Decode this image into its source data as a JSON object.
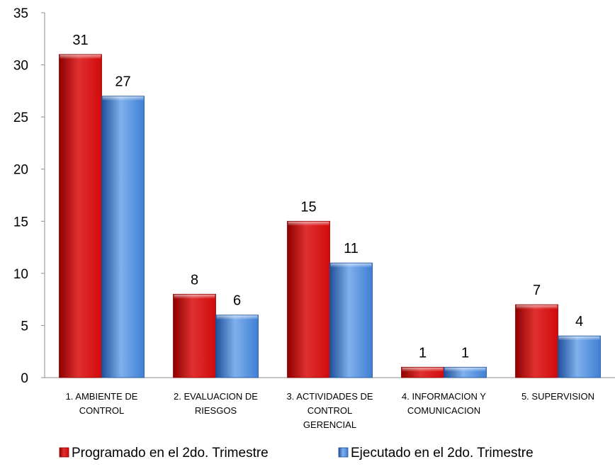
{
  "chart_data": {
    "type": "bar",
    "categories": [
      [
        "1. AMBIENTE DE",
        "CONTROL"
      ],
      [
        "2. EVALUACION DE",
        "RIESGOS"
      ],
      [
        "3. ACTIVIDADES DE",
        "CONTROL",
        "GERENCIAL"
      ],
      [
        "4. INFORMACION Y",
        "COMUNICACION"
      ],
      [
        "5. SUPERVISION"
      ]
    ],
    "series": [
      {
        "name": "Programado en el 2do. Trimestre",
        "values": [
          31,
          8,
          15,
          1,
          7
        ],
        "color": "#d10a0a",
        "color_light": "#e03030",
        "color_dark": "#8e0000"
      },
      {
        "name": "Ejecutado en el 2do. Trimestre",
        "values": [
          27,
          6,
          11,
          1,
          4
        ],
        "color": "#3f7fd4",
        "color_light": "#7fb0ec",
        "color_dark": "#1f4f9a"
      }
    ],
    "ylim": [
      0,
      35
    ],
    "yticks": [
      0,
      5,
      10,
      15,
      20,
      25,
      30,
      35
    ],
    "title": "",
    "xlabel": "",
    "ylabel": "",
    "grid": false,
    "legend_position": "bottom",
    "data_labels": true
  }
}
